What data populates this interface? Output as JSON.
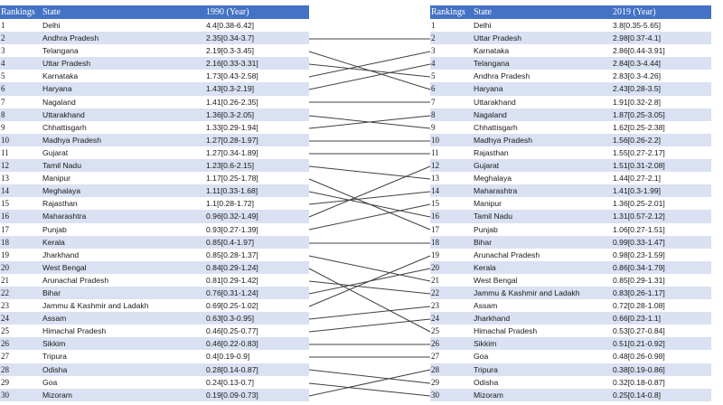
{
  "left_table": {
    "headers": {
      "rank": "Rankings",
      "state": "State",
      "value": "1990 (Year)"
    },
    "rows": [
      {
        "rank": "1",
        "state": "Delhi",
        "value": "4.4[0.38-6.42]"
      },
      {
        "rank": "2",
        "state": "Andhra Pradesh",
        "value": "2.35[0.34-3.7]"
      },
      {
        "rank": "3",
        "state": "Telangana",
        "value": "2.19[0.3-3.45]"
      },
      {
        "rank": "4",
        "state": "Uttar Pradesh",
        "value": "2.16[0.33-3.31]"
      },
      {
        "rank": "5",
        "state": "Karnataka",
        "value": "1.73[0.43-2.58]"
      },
      {
        "rank": "6",
        "state": "Haryana",
        "value": "1.43[0.3-2.19]"
      },
      {
        "rank": "7",
        "state": "Nagaland",
        "value": "1.41[0.26-2.35]"
      },
      {
        "rank": "8",
        "state": "Uttarakhand",
        "value": "1.36[0.3-2.05]"
      },
      {
        "rank": "9",
        "state": "Chhattisgarh",
        "value": "1.33[0.29-1.94]"
      },
      {
        "rank": "10",
        "state": "Madhya Pradesh",
        "value": "1.27[0.28-1.97]"
      },
      {
        "rank": "11",
        "state": "Gujarat",
        "value": "1.27[0.34-1.89]"
      },
      {
        "rank": "12",
        "state": "Tamil Nadu",
        "value": "1.23[0.6-2.15]"
      },
      {
        "rank": "13",
        "state": "Manipur",
        "value": "1.17[0.25-1.78]"
      },
      {
        "rank": "14",
        "state": "Meghalaya",
        "value": "1.11[0.33-1.68]"
      },
      {
        "rank": "15",
        "state": "Rajasthan",
        "value": "1.1[0.28-1.72]"
      },
      {
        "rank": "16",
        "state": "Maharashtra",
        "value": "0.96[0.32-1.49]"
      },
      {
        "rank": "17",
        "state": "Punjab",
        "value": "0.93[0.27-1.39]"
      },
      {
        "rank": "18",
        "state": "Kerala",
        "value": "0.85[0.4-1.97]"
      },
      {
        "rank": "19",
        "state": "Jharkhand",
        "value": "0.85[0.28-1.37]"
      },
      {
        "rank": "20",
        "state": "West Bengal",
        "value": "0.84[0.29-1.24]"
      },
      {
        "rank": "21",
        "state": "Arunachal Pradesh",
        "value": "0.81[0.29-1.42]"
      },
      {
        "rank": "22",
        "state": "Bihar",
        "value": "0.76[0.31-1.24]"
      },
      {
        "rank": "23",
        "state": "Jammu & Kashmir and Ladakh",
        "value": "0.69[0.25-1.02]"
      },
      {
        "rank": "24",
        "state": "Assam",
        "value": "0.63[0.3-0.95]"
      },
      {
        "rank": "25",
        "state": "Himachal Pradesh",
        "value": "0.46[0.25-0.77]"
      },
      {
        "rank": "26",
        "state": "Sikkim",
        "value": "0.46[0.22-0.83]"
      },
      {
        "rank": "27",
        "state": "Tripura",
        "value": "0.4[0.19-0.9]"
      },
      {
        "rank": "28",
        "state": "Odisha",
        "value": "0.28[0.14-0.87]"
      },
      {
        "rank": "29",
        "state": "Goa",
        "value": "0.24[0.13-0.7]"
      },
      {
        "rank": "30",
        "state": "Mizoram",
        "value": "0.19[0.09-0.73]"
      }
    ]
  },
  "right_table": {
    "headers": {
      "rank": "Rankings",
      "state": "State",
      "value": "2019 (Year)"
    },
    "rows": [
      {
        "rank": "1",
        "state": "Delhi",
        "value": "3.8[0.35-5.65]"
      },
      {
        "rank": "2",
        "state": "Uttar Pradesh",
        "value": "2.98[0.37-4.1]"
      },
      {
        "rank": "3",
        "state": "Karnataka",
        "value": "2.86[0.44-3.91]"
      },
      {
        "rank": "4",
        "state": "Telangana",
        "value": "2.84[0.3-4.44]"
      },
      {
        "rank": "5",
        "state": "Andhra Pradesh",
        "value": "2.83[0.3-4.26]"
      },
      {
        "rank": "6",
        "state": "Haryana",
        "value": "2.43[0.28-3.5]"
      },
      {
        "rank": "7",
        "state": "Uttarakhand",
        "value": "1.91[0.32-2.8]"
      },
      {
        "rank": "8",
        "state": "Nagaland",
        "value": "1.87[0.25-3.05]"
      },
      {
        "rank": "9",
        "state": "Chhattisgarh",
        "value": "1.62[0.25-2.38]"
      },
      {
        "rank": "10",
        "state": "Madhya Pradesh",
        "value": "1.56[0.26-2.2]"
      },
      {
        "rank": "11",
        "state": "Rajasthan",
        "value": "1.55[0.27-2.17]"
      },
      {
        "rank": "12",
        "state": "Gujarat",
        "value": "1.51[0.31-2.08]"
      },
      {
        "rank": "13",
        "state": "Meghalaya",
        "value": "1.44[0.27-2.1]"
      },
      {
        "rank": "14",
        "state": "Maharashtra",
        "value": "1.41[0.3-1.99]"
      },
      {
        "rank": "15",
        "state": "Manipur",
        "value": "1.36[0.25-2.01]"
      },
      {
        "rank": "16",
        "state": "Tamil Nadu",
        "value": "1.31[0.57-2.12]"
      },
      {
        "rank": "17",
        "state": "Punjab",
        "value": "1.06[0.27-1.51]"
      },
      {
        "rank": "18",
        "state": "Bihar",
        "value": "0.99[0.33-1.47]"
      },
      {
        "rank": "19",
        "state": "Arunachal Pradesh",
        "value": "0.98[0.23-1.59]"
      },
      {
        "rank": "20",
        "state": "Kerala",
        "value": "0.86[0.34-1.79]"
      },
      {
        "rank": "21",
        "state": "West Bengal",
        "value": "0.85[0.29-1.31]"
      },
      {
        "rank": "22",
        "state": "Jammu & Kashmir and Ladakh",
        "value": "0.83[0.26-1.17]"
      },
      {
        "rank": "23",
        "state": "Assam",
        "value": "0.72[0.28-1.08]"
      },
      {
        "rank": "24",
        "state": "Jharkhand",
        "value": "0.66[0.23-1.1]"
      },
      {
        "rank": "25",
        "state": "Himachal Pradesh",
        "value": "0.53[0.27-0.84]"
      },
      {
        "rank": "26",
        "state": "Sikkim",
        "value": "0.51[0.21-0.92]"
      },
      {
        "rank": "27",
        "state": "Goa",
        "value": "0.48[0.26-0.98]"
      },
      {
        "rank": "28",
        "state": "Tripura",
        "value": "0.38[0.19-0.86]"
      },
      {
        "rank": "29",
        "state": "Odisha",
        "value": "0.32[0.18-0.87]"
      },
      {
        "rank": "30",
        "state": "Mizoram",
        "value": "0.25[0.14-0.8]"
      }
    ]
  },
  "colors": {
    "header_bg": "#4472c4",
    "header_text": "#ffffff",
    "stripe": "#d9e1f2",
    "line": "#404040"
  }
}
